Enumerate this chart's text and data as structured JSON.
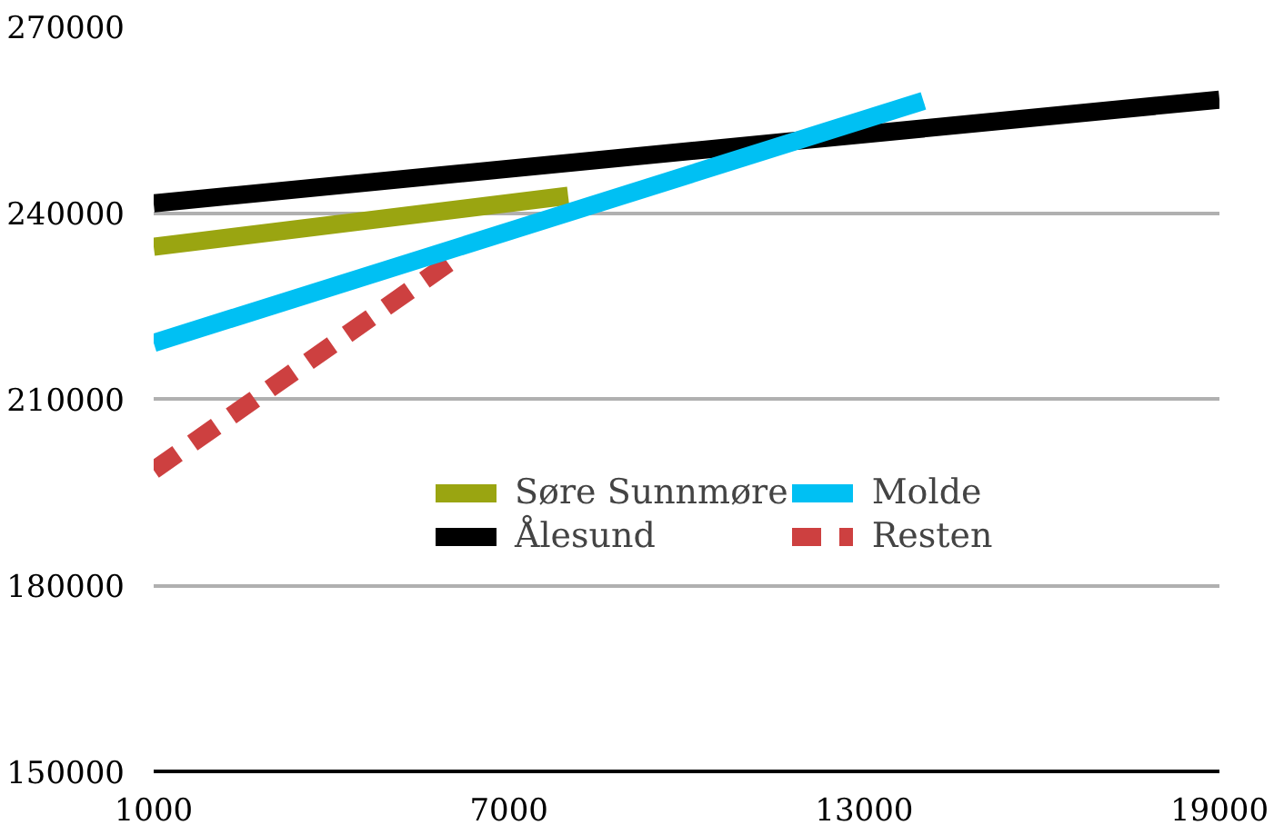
{
  "chart_data": {
    "type": "line",
    "series": [
      {
        "name": "Søre Sunnmøre",
        "color": "#9aa511",
        "x": [
          1000,
          8000
        ],
        "values": [
          234500,
          242700
        ]
      },
      {
        "name": "Ålesund",
        "color": "#000000",
        "x": [
          1000,
          19000
        ],
        "values": [
          241500,
          258200
        ]
      },
      {
        "name": "Molde",
        "color": "#00c0f3",
        "x": [
          1000,
          14000
        ],
        "values": [
          219000,
          258000
        ]
      },
      {
        "name": "Resten",
        "color": "#cd4040",
        "x": [
          1000,
          6000
        ],
        "values": [
          198500,
          232000
        ],
        "line_style": "dashed"
      }
    ],
    "xlim": [
      1000,
      19000
    ],
    "xticks": [
      1000,
      7000,
      13000,
      19000
    ],
    "ylim": [
      150000,
      270000
    ],
    "yticks": [
      150000,
      180000,
      210000,
      240000,
      270000
    ],
    "grid": "y",
    "legend": "bottom right",
    "line_style": "solid",
    "marker": "none"
  }
}
